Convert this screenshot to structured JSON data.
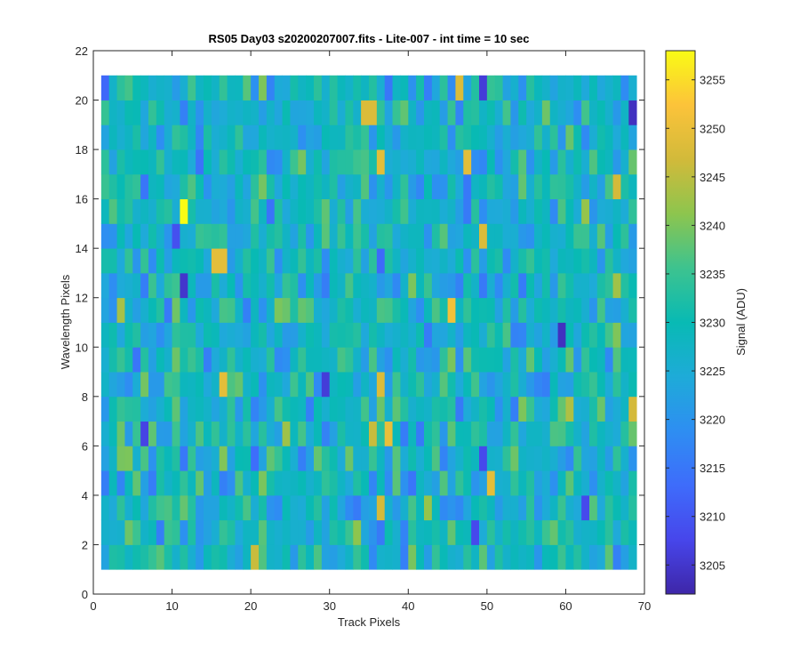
{
  "chart_data": {
    "type": "heatmap",
    "title": "RS05 Day03  s20200207007.fits - Lite-007 - int time = 10 sec",
    "xlabel": "Track Pixels",
    "ylabel": "Wavelength Pixels",
    "colorbar_label": "Signal (ADU)",
    "xlim": [
      0,
      70
    ],
    "ylim": [
      0,
      22
    ],
    "x_ticks": [
      0,
      10,
      20,
      30,
      40,
      50,
      60,
      70
    ],
    "y_ticks": [
      0,
      2,
      4,
      6,
      8,
      10,
      12,
      14,
      16,
      18,
      20,
      22
    ],
    "clim": [
      3202,
      3258
    ],
    "colorbar_ticks": [
      3205,
      3210,
      3215,
      3220,
      3225,
      3230,
      3235,
      3240,
      3245,
      3250,
      3255
    ],
    "colormap": "parula",
    "grid": false,
    "x_range": [
      1,
      69
    ],
    "y_range": [
      1,
      21
    ],
    "nx": 68,
    "ny": 20,
    "hotspots": [
      {
        "x": 11.5,
        "y": 15.5,
        "value": 3258
      },
      {
        "x": 4.5,
        "y": 20.5,
        "value": 3236
      },
      {
        "x": 46.5,
        "y": 20.5,
        "value": 3248
      },
      {
        "x": 34.5,
        "y": 19.5,
        "value": 3248
      },
      {
        "x": 35.5,
        "y": 19.5,
        "value": 3248
      },
      {
        "x": 36.5,
        "y": 17.5,
        "value": 3249
      },
      {
        "x": 47.5,
        "y": 17.5,
        "value": 3249
      },
      {
        "x": 15.5,
        "y": 13.5,
        "value": 3249
      },
      {
        "x": 16.5,
        "y": 13.5,
        "value": 3249
      },
      {
        "x": 45.5,
        "y": 11.5,
        "value": 3251
      },
      {
        "x": 49.5,
        "y": 14.5,
        "value": 3248
      },
      {
        "x": 16.5,
        "y": 8.5,
        "value": 3249
      },
      {
        "x": 36.5,
        "y": 8.5,
        "value": 3248
      },
      {
        "x": 37.5,
        "y": 6.5,
        "value": 3250
      },
      {
        "x": 35.5,
        "y": 6.5,
        "value": 3246
      },
      {
        "x": 50.5,
        "y": 4.5,
        "value": 3249
      },
      {
        "x": 36.5,
        "y": 3.5,
        "value": 3247
      },
      {
        "x": 20.5,
        "y": 1.5,
        "value": 3246
      },
      {
        "x": 68.5,
        "y": 7.5,
        "value": 3247
      },
      {
        "x": 66.5,
        "y": 16.5,
        "value": 3247
      },
      {
        "x": 11.5,
        "y": 12.5,
        "value": 3205
      },
      {
        "x": 59.5,
        "y": 10.5,
        "value": 3204
      },
      {
        "x": 29.5,
        "y": 8.5,
        "value": 3206
      },
      {
        "x": 6.5,
        "y": 6.5,
        "value": 3207
      },
      {
        "x": 68.5,
        "y": 19.5,
        "value": 3204
      },
      {
        "x": 49.5,
        "y": 20.5,
        "value": 3206
      },
      {
        "x": 62.5,
        "y": 3.5,
        "value": 3208
      },
      {
        "x": 49.5,
        "y": 5.5,
        "value": 3208
      },
      {
        "x": 10.5,
        "y": 14.5,
        "value": 3209
      },
      {
        "x": 48.5,
        "y": 2.5,
        "value": 3208
      }
    ]
  }
}
